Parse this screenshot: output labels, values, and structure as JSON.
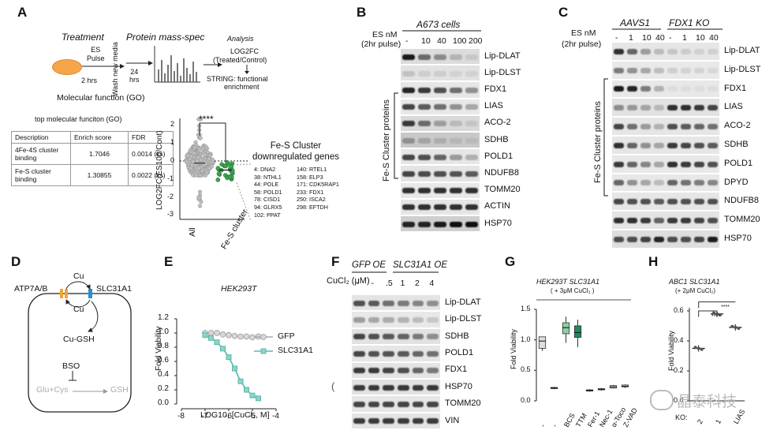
{
  "panels": {
    "A": "A",
    "B": "B",
    "C": "C",
    "D": "D",
    "E": "E",
    "F": "F",
    "G": "G",
    "H": "H"
  },
  "panelA": {
    "treatment_title": "Treatment",
    "es_pulse": "ES\nPulse",
    "two_hrs": "2 hrs",
    "wash": "Wash\nnew media",
    "hrs24": "24\nhrs",
    "mass_spec_title": "Protein mass-spec",
    "analysis_title": "Analysis",
    "log2fc": "LOG2FC",
    "treated_control": "(Treated/Control)",
    "string": "STRING: functional",
    "enrichment": "enrichment",
    "molecular_function": "Molecular function (GO)",
    "table_title": "top molecular funciton (GO)",
    "table_header": [
      "Description",
      "Enrich score",
      "FDR"
    ],
    "table_rows": [
      [
        "4Fe-4S cluster\nbinding",
        "1.7046",
        "0.0014 (ks)"
      ],
      [
        "Fe-S cluster\nbinding",
        "1.30855",
        "0.0022 (ks)"
      ]
    ],
    "signif": "****",
    "yaxis": "LOG2FC(ES100/Cont)",
    "yticks": [
      "2",
      "1",
      "0",
      "-1",
      "-2",
      "-3"
    ],
    "xcats": [
      "All",
      "Fe-S cluster"
    ],
    "genes_title": "Fe-S Cluster\ndownregulated genes",
    "genes_col1": [
      "4: DNA2",
      "38: NTHL1",
      "44: POLE",
      "58: POLD1",
      "78: CISD1",
      "94: GLRX5",
      "102: PPAT"
    ],
    "genes_col2": [
      "140: RTEL1",
      "158: ELP3",
      "171: CDK5RAP1",
      "233: FDX1",
      "250: ISCA2",
      "298: EFTDH"
    ]
  },
  "panelB": {
    "es_nm": "ES nM",
    "pulse": "(2hr pulse)",
    "cells": "A673 cells",
    "conc": [
      "-",
      "10",
      "40",
      "100",
      "200"
    ],
    "bands": [
      "Lip-DLAT",
      "Lip-DLST",
      "FDX1",
      "LIAS",
      "ACO-2",
      "SDHB",
      "POLD1",
      "NDUFB8",
      "TOMM20",
      "ACTIN",
      "HSP70"
    ],
    "cluster_label": "Fe-S Cluster proteins"
  },
  "panelC": {
    "es_nm": "ES nM",
    "pulse": "(2hr pulse)",
    "group1": "AAVS1",
    "group2": "FDX1 KO",
    "conc": [
      "-",
      "1",
      "10",
      "40",
      "-",
      "1",
      "10",
      "40"
    ],
    "bands": [
      "Lip-DLAT",
      "Lip-DLST",
      "FDX1",
      "LIAS",
      "ACO-2",
      "SDHB",
      "POLD1",
      "DPYD",
      "NDUFB8",
      "TOMM20",
      "HSP70"
    ],
    "cluster_label": "Fe-S Cluster proteins"
  },
  "panelD": {
    "atp7": "ATP7A/B",
    "slc": "SLC31A1",
    "cu1": "Cu",
    "cu2": "Cu",
    "cugsh": "Cu-GSH",
    "bso": "BSO",
    "glu": "Glu+Cys",
    "gsh": "GSH"
  },
  "panelE": {
    "title": "HEK293T",
    "ylabel": "Fold Viability",
    "xlabel": "LOG10, [CuCl₂, M]",
    "yticks": [
      "1.2",
      "1.0",
      "0.8",
      "0.6",
      "0.4",
      "0.2",
      "0.0"
    ],
    "xticks": [
      "-8",
      "-7",
      "-6",
      "-5",
      "-4"
    ],
    "legend": [
      "GFP",
      "SLC31A1"
    ],
    "colors": {
      "gfp": "#a8a8a8",
      "slc": "#59b8ad"
    }
  },
  "chart_data": [
    {
      "type": "line",
      "title": "HEK293T",
      "xlabel": "LOG10, [CuCl₂, M]",
      "ylabel": "Fold Viability",
      "xlim": [
        -8,
        -4
      ],
      "ylim": [
        0,
        1.2
      ],
      "series": [
        {
          "name": "GFP",
          "x": [
            -7,
            -6.75,
            -6.5,
            -6.25,
            -6,
            -5.75,
            -5.5,
            -5.25,
            -5,
            -4.75
          ],
          "y": [
            1.0,
            1.0,
            1.0,
            0.98,
            0.97,
            0.96,
            0.95,
            0.95,
            0.94,
            0.95
          ]
        },
        {
          "name": "SLC31A1",
          "x": [
            -7,
            -6.75,
            -6.5,
            -6.25,
            -6,
            -5.75,
            -5.5,
            -5.25,
            -5,
            -4.75
          ],
          "y": [
            0.97,
            0.93,
            0.87,
            0.78,
            0.66,
            0.5,
            0.32,
            0.2,
            0.12,
            0.08
          ]
        }
      ]
    },
    {
      "type": "box",
      "title": "HEK293T SLC31A1",
      "subtitle": "( + 3μM CuCl₂ )",
      "ylabel": "Fold Viability",
      "ylim": [
        0,
        1.5
      ],
      "categories": [
        "-",
        "-",
        "BCS",
        "TTM",
        "Fer-1",
        "Nec-1",
        "α-Toco",
        "Z-VAD"
      ],
      "boxes": [
        {
          "min": 0.82,
          "q1": 0.86,
          "median": 0.98,
          "q3": 1.05,
          "max": 1.05,
          "color": "#dddddd"
        },
        {
          "min": 0.19,
          "q1": 0.2,
          "median": 0.21,
          "q3": 0.22,
          "max": 0.23,
          "color": "#cfd8e8"
        },
        {
          "min": 0.95,
          "q1": 1.1,
          "median": 1.2,
          "q3": 1.28,
          "max": 1.38,
          "color": "#8ad0a4"
        },
        {
          "min": 0.88,
          "q1": 1.04,
          "median": 1.12,
          "q3": 1.23,
          "max": 1.33,
          "color": "#1d8a5e"
        },
        {
          "min": 0.15,
          "q1": 0.16,
          "median": 0.17,
          "q3": 0.18,
          "max": 0.19,
          "color": "#cfd8e8"
        },
        {
          "min": 0.17,
          "q1": 0.18,
          "median": 0.19,
          "q3": 0.2,
          "max": 0.21,
          "color": "#cfd8e8"
        },
        {
          "min": 0.2,
          "q1": 0.21,
          "median": 0.23,
          "q3": 0.25,
          "max": 0.26,
          "color": "#cfd8e8"
        },
        {
          "min": 0.21,
          "q1": 0.23,
          "median": 0.24,
          "q3": 0.26,
          "max": 0.27,
          "color": "#cfd8e8"
        }
      ]
    },
    {
      "type": "scatter",
      "title": "ABC1 SLC31A1",
      "subtitle": "(+ 2μM CuCl₂)",
      "ylabel": "Fold Viability",
      "ylim": [
        0,
        0.6
      ],
      "categories": [
        "2",
        "1",
        "LIAS"
      ],
      "values": [
        0.35,
        0.58,
        0.49
      ]
    }
  ],
  "panelF": {
    "gfp": "GFP OE",
    "slc": "SLC31A1 OE",
    "cucl": "CuCl₂ (μM)",
    "conc": [
      "-",
      "-",
      ".5",
      "1",
      "2",
      "4"
    ],
    "bands": [
      "Lip-DLAT",
      "Lip-DLST",
      "SDHB",
      "POLD1",
      "FDX1",
      "HSP70",
      "TOMM20",
      "VIN"
    ],
    "stray": "("
  },
  "panelG": {
    "title": "HEK293T SLC31A1",
    "subtitle": "( + 3μM CuCl₂ )",
    "ylabel": "Fold Viability",
    "yticks": [
      "1.5",
      "1.0",
      "0.5",
      "0.0"
    ],
    "xcats": [
      "-",
      "-",
      "BCS",
      "TTM",
      "Fer-1",
      "Nec-1",
      "α-Toco",
      "Z-VAD"
    ]
  },
  "panelH": {
    "title": "ABC1 SLC31A1",
    "subtitle": "(+ 2μM CuCl₂)",
    "ylabel": "Fold Viability",
    "yticks": [
      "0.6",
      "0.4",
      "0.2",
      "0.0"
    ],
    "xcats": [
      "2",
      "1",
      "LIAS"
    ],
    "ko": "KO:",
    "sig1": "****",
    "sig2": "****"
  },
  "watermark": "晶泰科技"
}
